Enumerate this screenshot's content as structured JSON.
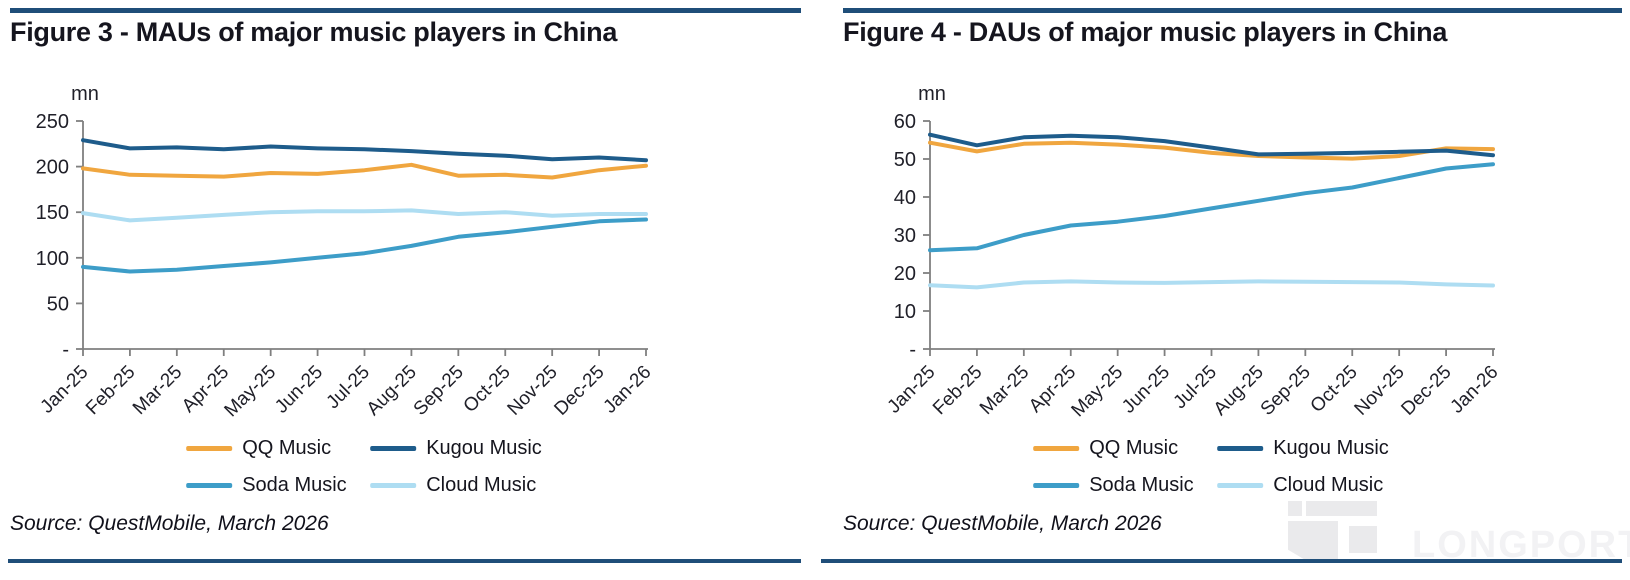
{
  "accents": {
    "rule_navy": "#1F4E79",
    "axis_gray": "#7f7f7f",
    "text_dark": "#15151e",
    "watermark_gray": "#eaeaec"
  },
  "watermark": {
    "text": "LONGPORT"
  },
  "chart_data": [
    {
      "type": "line",
      "title": "Figure 3 - MAUs of major music players in China",
      "unit": "mn",
      "source": "Source: QuestMobile, March 2026",
      "x": [
        "Jan-25",
        "Feb-25",
        "Mar-25",
        "Apr-25",
        "May-25",
        "Jun-25",
        "Jul-25",
        "Aug-25",
        "Sep-25",
        "Oct-25",
        "Nov-25",
        "Dec-25",
        "Jan-26"
      ],
      "ylim": [
        0,
        250
      ],
      "yticks": [
        "-",
        "50",
        "100",
        "150",
        "200",
        "250"
      ],
      "grid": false,
      "legend_position": "bottom",
      "series": [
        {
          "name": "QQ Music",
          "color": "#F0A63F",
          "values": [
            198,
            191,
            190,
            189,
            193,
            192,
            196,
            202,
            190,
            191,
            188,
            196,
            201
          ]
        },
        {
          "name": "Kugou Music",
          "color": "#1E5C8B",
          "values": [
            229,
            220,
            221,
            219,
            222,
            220,
            219,
            217,
            214,
            212,
            208,
            210,
            207
          ]
        },
        {
          "name": "Soda Music",
          "color": "#3D9DC8",
          "values": [
            90,
            85,
            87,
            91,
            95,
            100,
            105,
            113,
            123,
            128,
            134,
            140,
            142
          ]
        },
        {
          "name": "Cloud Music",
          "color": "#AEDDF2",
          "values": [
            149,
            141,
            144,
            147,
            150,
            151,
            151,
            152,
            148,
            150,
            146,
            148,
            148
          ]
        }
      ]
    },
    {
      "type": "line",
      "title": "Figure 4 - DAUs of major music players in China",
      "unit": "mn",
      "source": "Source: QuestMobile, March 2026",
      "x": [
        "Jan-25",
        "Feb-25",
        "Mar-25",
        "Apr-25",
        "May-25",
        "Jun-25",
        "Jul-25",
        "Aug-25",
        "Sep-25",
        "Oct-25",
        "Nov-25",
        "Dec-25",
        "Jan-26"
      ],
      "ylim": [
        0,
        60
      ],
      "yticks": [
        "-",
        "10",
        "20",
        "30",
        "40",
        "50",
        "60"
      ],
      "grid": false,
      "legend_position": "bottom",
      "series": [
        {
          "name": "QQ Music",
          "color": "#F0A63F",
          "values": [
            54.3,
            52,
            54,
            54.3,
            53.8,
            53,
            51.6,
            50.8,
            50.4,
            50.1,
            50.8,
            52.8,
            52.6
          ]
        },
        {
          "name": "Kugou Music",
          "color": "#1E5C8B",
          "values": [
            56.4,
            53.6,
            55.7,
            56.1,
            55.7,
            54.7,
            53,
            51.2,
            51.4,
            51.6,
            51.9,
            52.2,
            51
          ]
        },
        {
          "name": "Soda Music",
          "color": "#3D9DC8",
          "values": [
            26,
            26.5,
            30,
            32.5,
            33.5,
            35,
            37,
            39,
            41,
            42.5,
            45,
            47.5,
            48.6
          ]
        },
        {
          "name": "Cloud Music",
          "color": "#AEDDF2",
          "values": [
            16.8,
            16.2,
            17.5,
            17.8,
            17.5,
            17.4,
            17.6,
            17.8,
            17.7,
            17.6,
            17.5,
            17,
            16.7
          ]
        }
      ]
    }
  ]
}
